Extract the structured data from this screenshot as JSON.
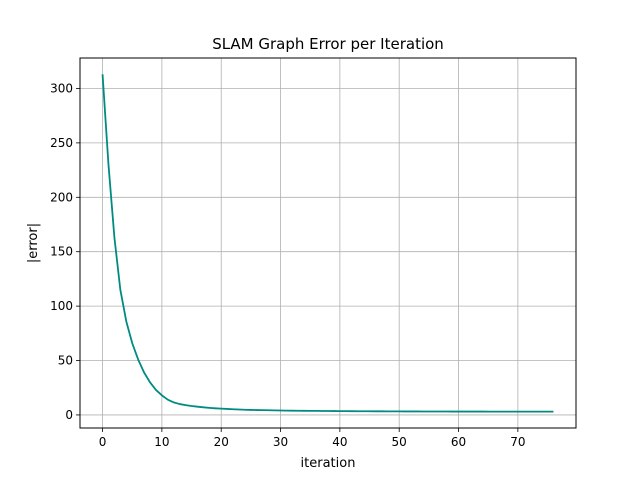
{
  "chart_data": {
    "type": "line",
    "title": "SLAM Graph Error per Iteration",
    "xlabel": "iteration",
    "ylabel": "|error|",
    "xlim": [
      -3.8,
      79.8
    ],
    "ylim": [
      -12.0,
      328.0
    ],
    "xticks": [
      0,
      10,
      20,
      30,
      40,
      50,
      60,
      70
    ],
    "yticks": [
      0,
      50,
      100,
      150,
      200,
      250,
      300
    ],
    "grid": true,
    "legend": false,
    "series": [
      {
        "color": "#008b80",
        "x": [
          0,
          1,
          2,
          3,
          4,
          5,
          6,
          7,
          8,
          9,
          10,
          11,
          12,
          13,
          14,
          15,
          16,
          17,
          18,
          19,
          20,
          21,
          22,
          23,
          24,
          25,
          26,
          27,
          28,
          29,
          30,
          31,
          32,
          33,
          34,
          35,
          36,
          37,
          38,
          39,
          40,
          41,
          42,
          43,
          44,
          45,
          46,
          47,
          48,
          49,
          50,
          51,
          52,
          53,
          54,
          55,
          56,
          57,
          58,
          59,
          60,
          61,
          62,
          63,
          64,
          65,
          66,
          67,
          68,
          69,
          70,
          71,
          72,
          73,
          74,
          75,
          76
        ],
        "y": [
          313,
          230,
          163,
          115,
          86,
          66,
          51,
          39,
          30,
          23,
          18,
          14,
          11.5,
          10,
          9,
          8.2,
          7.6,
          7,
          6.5,
          6.1,
          5.8,
          5.5,
          5.2,
          5,
          4.8,
          4.6,
          4.5,
          4.4,
          4.3,
          4.2,
          4.1,
          4,
          3.9,
          3.85,
          3.8,
          3.75,
          3.7,
          3.65,
          3.6,
          3.55,
          3.5,
          3.48,
          3.45,
          3.42,
          3.4,
          3.38,
          3.35,
          3.33,
          3.3,
          3.28,
          3.26,
          3.24,
          3.22,
          3.2,
          3.18,
          3.17,
          3.16,
          3.15,
          3.14,
          3.13,
          3.12,
          3.11,
          3.1,
          3.1,
          3.09,
          3.08,
          3.08,
          3.07,
          3.07,
          3.06,
          3.06,
          3.05,
          3.05,
          3.05,
          3.04,
          3.04,
          3.04
        ]
      }
    ]
  }
}
